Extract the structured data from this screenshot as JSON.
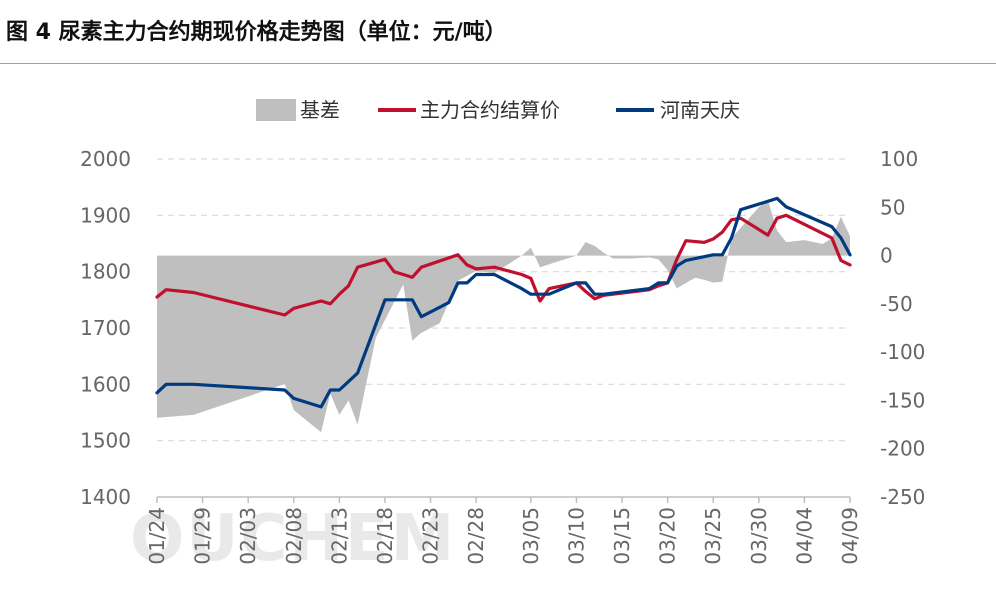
{
  "header": {
    "title": "图 4  尿素主力合约期现价格走势图（单位：元/吨）"
  },
  "watermark": "OUCHEM",
  "chart_data": {
    "type": "line",
    "title": "尿素主力合约期现价格走势图（单位：元/吨）",
    "legend": {
      "placement": "top",
      "entries": [
        "基差",
        "主力合约结算价",
        "河南天庆"
      ]
    },
    "x_ticks": [
      "01/24",
      "01/29",
      "02/03",
      "02/08",
      "02/13",
      "02/18",
      "02/23",
      "02/28",
      "03/05",
      "03/10",
      "03/15",
      "03/20",
      "03/25",
      "03/30",
      "04/04",
      "04/09"
    ],
    "x_range": [
      "01/24",
      "04/09"
    ],
    "y_left": {
      "ticks": [
        2000,
        1900,
        1800,
        1700,
        1600,
        1500,
        1400
      ],
      "range": [
        1400,
        2000
      ]
    },
    "y_right": {
      "ticks": [
        100,
        50,
        0,
        -50,
        -100,
        -150,
        -200,
        -250
      ],
      "range": [
        -250,
        100
      ]
    },
    "grid": "horizontal dashed",
    "colors": {
      "basis": "#bfbfbf",
      "futures": "#c0102f",
      "spot": "#003a80"
    },
    "series": [
      {
        "name": "基差",
        "type": "area",
        "axis": "right",
        "points": [
          [
            "01/24",
            -168
          ],
          [
            "01/28",
            -165
          ],
          [
            "02/07",
            -133
          ],
          [
            "02/08",
            -160
          ],
          [
            "02/11",
            -183
          ],
          [
            "02/12",
            -143
          ],
          [
            "02/13",
            -165
          ],
          [
            "02/14",
            -150
          ],
          [
            "02/15",
            -175
          ],
          [
            "02/17",
            -85
          ],
          [
            "02/20",
            -30
          ],
          [
            "02/21",
            -88
          ],
          [
            "02/22",
            -80
          ],
          [
            "02/24",
            -70
          ],
          [
            "02/26",
            -26
          ],
          [
            "02/28",
            -16
          ],
          [
            "03/01",
            -18
          ],
          [
            "03/04",
            0
          ],
          [
            "03/05",
            8
          ],
          [
            "03/06",
            -12
          ],
          [
            "03/08",
            -6
          ],
          [
            "03/10",
            0
          ],
          [
            "03/11",
            14
          ],
          [
            "03/12",
            10
          ],
          [
            "03/13",
            3
          ],
          [
            "03/14",
            -3
          ],
          [
            "03/16",
            -3
          ],
          [
            "03/18",
            -2
          ],
          [
            "03/19",
            -4
          ],
          [
            "03/20",
            -15
          ],
          [
            "03/21",
            -34
          ],
          [
            "03/23",
            -23
          ],
          [
            "03/24",
            -25
          ],
          [
            "03/25",
            -28
          ],
          [
            "03/26",
            -27
          ],
          [
            "03/27",
            18
          ],
          [
            "03/30",
            50
          ],
          [
            "03/31",
            57
          ],
          [
            "04/01",
            26
          ],
          [
            "04/02",
            14
          ],
          [
            "04/04",
            16
          ],
          [
            "04/06",
            12
          ],
          [
            "04/07",
            18
          ],
          [
            "04/08",
            40
          ],
          [
            "04/09",
            20
          ]
        ]
      },
      {
        "name": "主力合约结算价",
        "type": "line",
        "axis": "left",
        "points": [
          [
            "01/24",
            1755
          ],
          [
            "01/25",
            1768
          ],
          [
            "01/28",
            1763
          ],
          [
            "02/07",
            1723
          ],
          [
            "02/08",
            1735
          ],
          [
            "02/11",
            1748
          ],
          [
            "02/12",
            1743
          ],
          [
            "02/13",
            1760
          ],
          [
            "02/14",
            1775
          ],
          [
            "02/15",
            1808
          ],
          [
            "02/18",
            1822
          ],
          [
            "02/19",
            1800
          ],
          [
            "02/20",
            1795
          ],
          [
            "02/21",
            1790
          ],
          [
            "02/22",
            1808
          ],
          [
            "02/26",
            1830
          ],
          [
            "02/27",
            1812
          ],
          [
            "02/28",
            1805
          ],
          [
            "03/01",
            1808
          ],
          [
            "03/04",
            1795
          ],
          [
            "03/05",
            1788
          ],
          [
            "03/06",
            1748
          ],
          [
            "03/07",
            1770
          ],
          [
            "03/10",
            1780
          ],
          [
            "03/11",
            1765
          ],
          [
            "03/12",
            1752
          ],
          [
            "03/13",
            1758
          ],
          [
            "03/18",
            1768
          ],
          [
            "03/19",
            1775
          ],
          [
            "03/20",
            1780
          ],
          [
            "03/21",
            1822
          ],
          [
            "03/22",
            1855
          ],
          [
            "03/24",
            1852
          ],
          [
            "03/25",
            1858
          ],
          [
            "03/26",
            1870
          ],
          [
            "03/27",
            1892
          ],
          [
            "03/28",
            1895
          ],
          [
            "03/31",
            1865
          ],
          [
            "04/01",
            1895
          ],
          [
            "04/02",
            1900
          ],
          [
            "04/07",
            1860
          ],
          [
            "04/08",
            1820
          ],
          [
            "04/09",
            1812
          ]
        ]
      },
      {
        "name": "河南天庆",
        "type": "line",
        "axis": "left",
        "points": [
          [
            "01/24",
            1585
          ],
          [
            "01/25",
            1600
          ],
          [
            "01/28",
            1600
          ],
          [
            "02/07",
            1590
          ],
          [
            "02/08",
            1575
          ],
          [
            "02/11",
            1560
          ],
          [
            "02/12",
            1590
          ],
          [
            "02/13",
            1590
          ],
          [
            "02/15",
            1620
          ],
          [
            "02/18",
            1750
          ],
          [
            "02/20",
            1750
          ],
          [
            "02/21",
            1750
          ],
          [
            "02/22",
            1720
          ],
          [
            "02/25",
            1745
          ],
          [
            "02/26",
            1780
          ],
          [
            "02/27",
            1780
          ],
          [
            "02/28",
            1795
          ],
          [
            "03/01",
            1795
          ],
          [
            "03/04",
            1770
          ],
          [
            "03/05",
            1760
          ],
          [
            "03/07",
            1760
          ],
          [
            "03/10",
            1780
          ],
          [
            "03/11",
            1780
          ],
          [
            "03/12",
            1760
          ],
          [
            "03/13",
            1760
          ],
          [
            "03/18",
            1770
          ],
          [
            "03/19",
            1780
          ],
          [
            "03/20",
            1780
          ],
          [
            "03/21",
            1810
          ],
          [
            "03/22",
            1820
          ],
          [
            "03/25",
            1830
          ],
          [
            "03/26",
            1830
          ],
          [
            "03/27",
            1860
          ],
          [
            "03/28",
            1910
          ],
          [
            "03/31",
            1925
          ],
          [
            "04/01",
            1930
          ],
          [
            "04/02",
            1915
          ],
          [
            "04/07",
            1880
          ],
          [
            "04/08",
            1860
          ],
          [
            "04/09",
            1830
          ]
        ]
      }
    ]
  }
}
